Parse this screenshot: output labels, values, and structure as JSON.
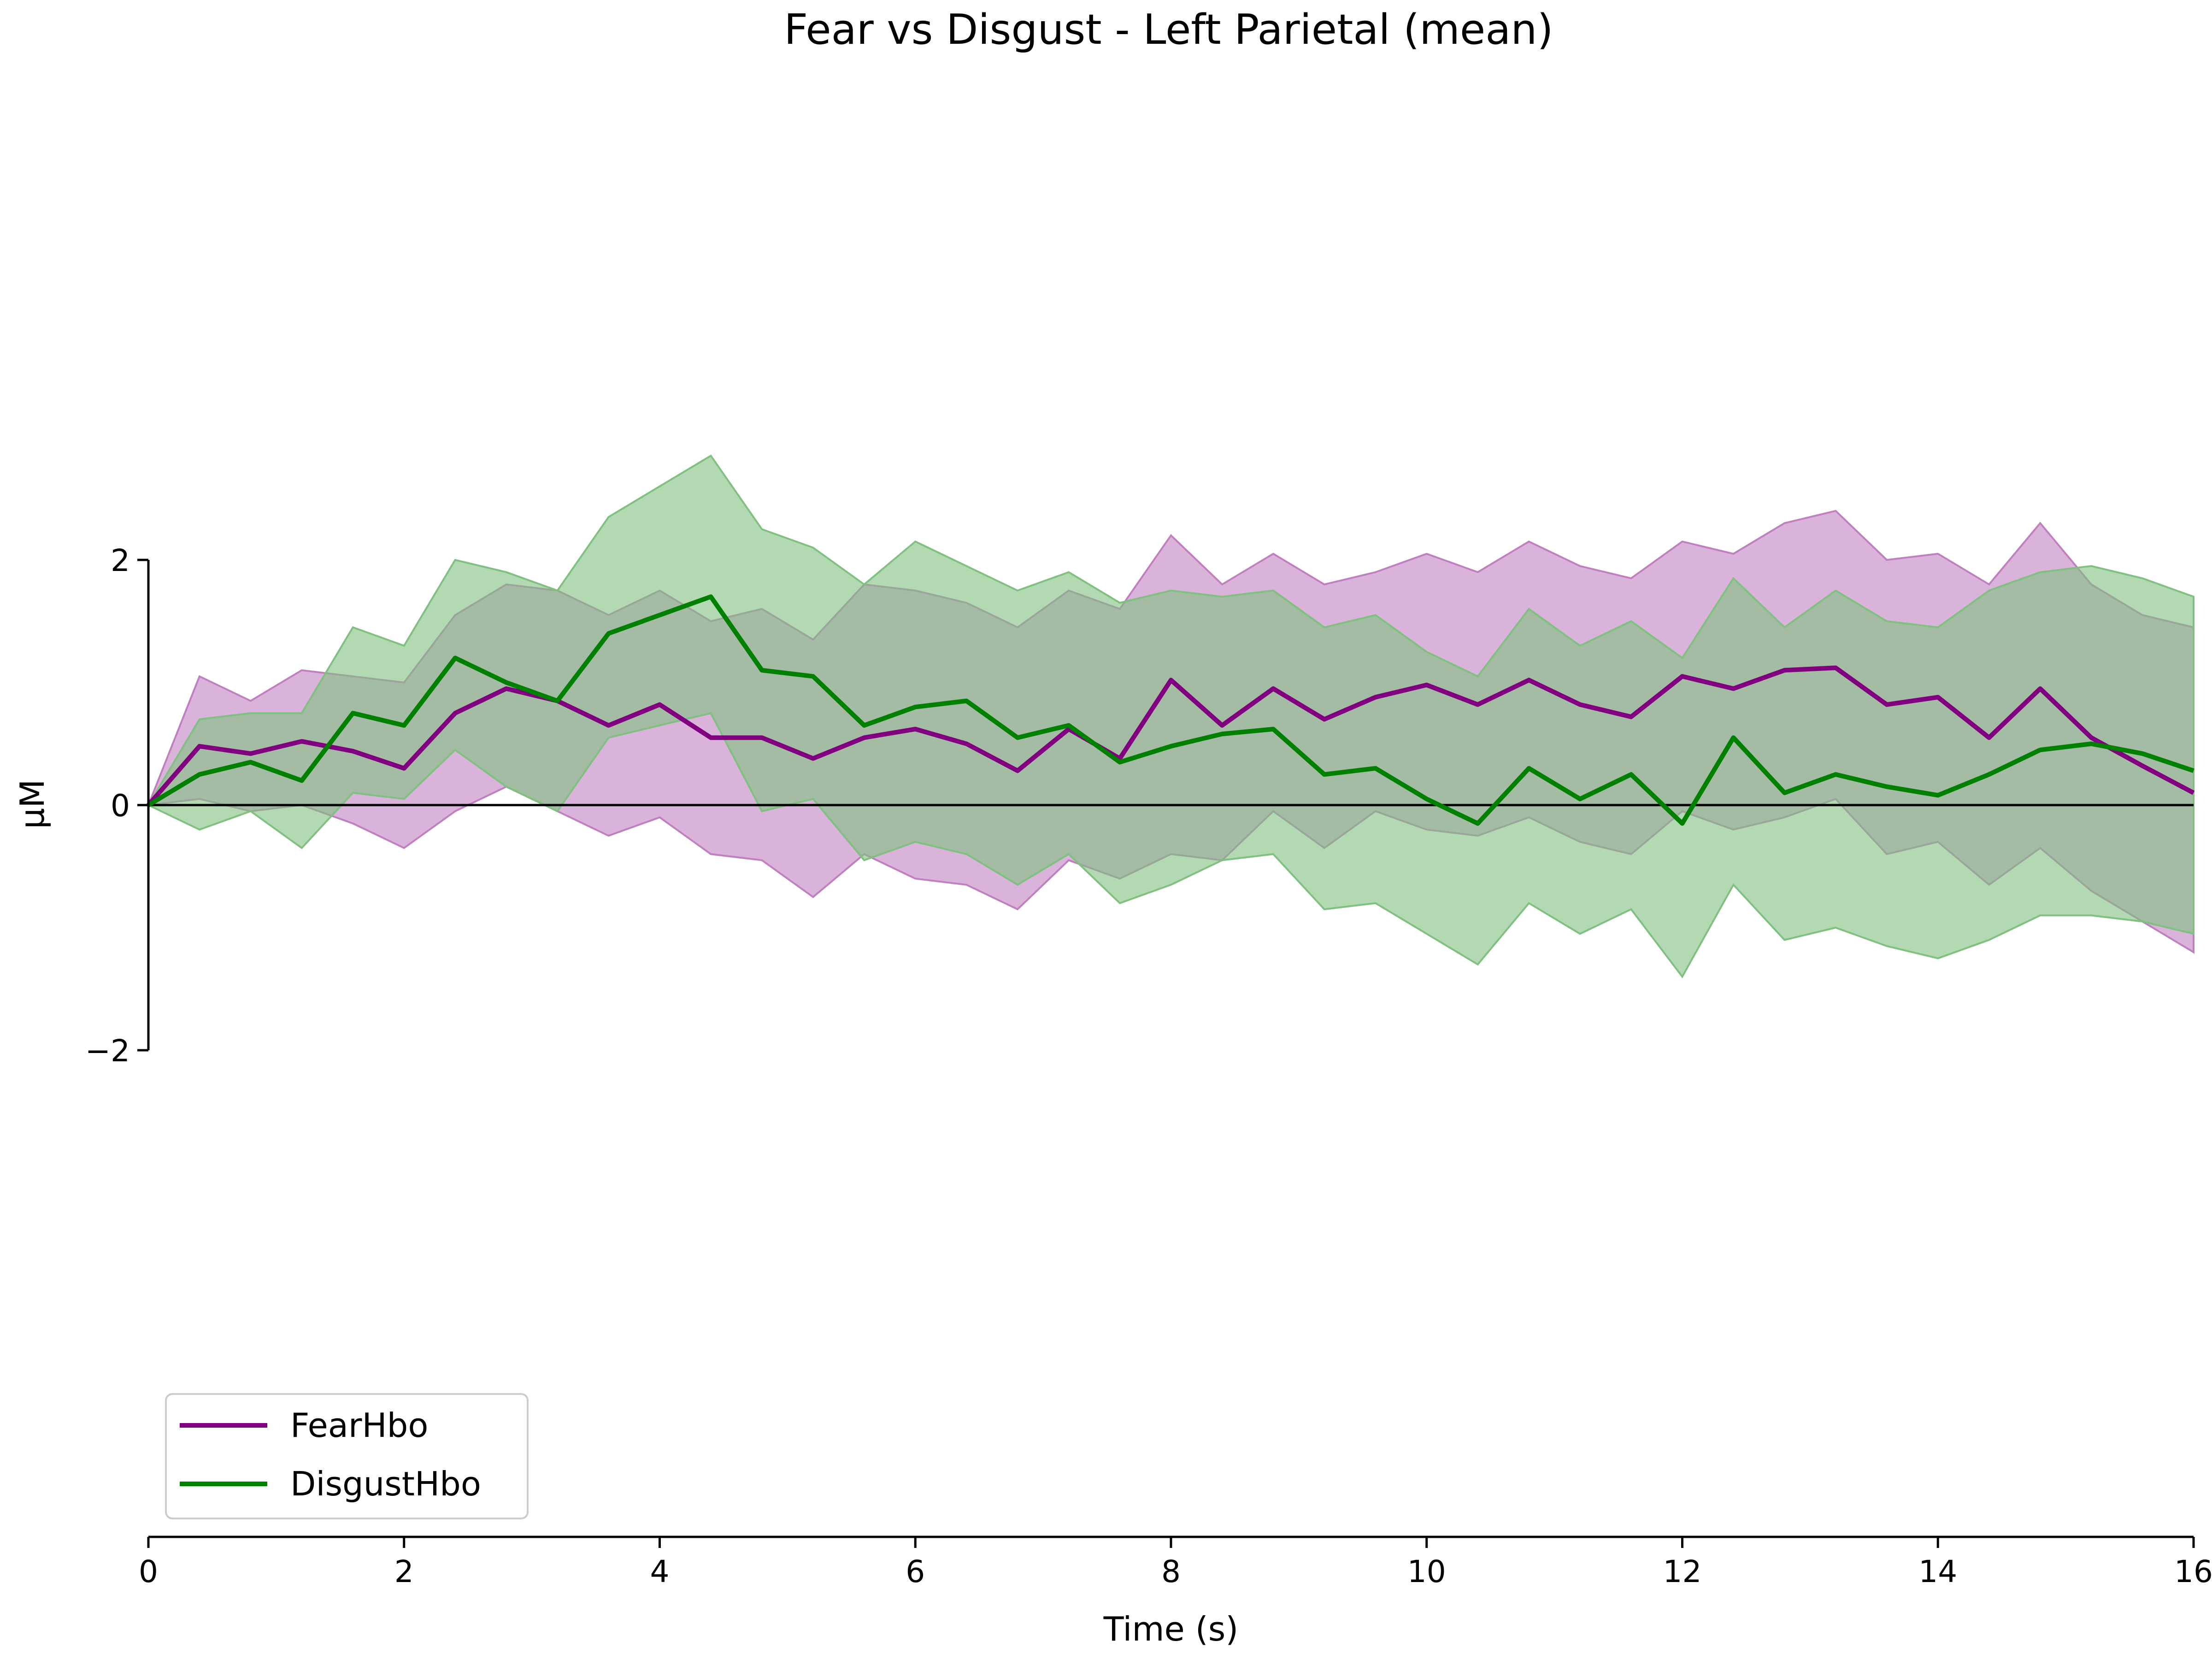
{
  "chart_data": {
    "type": "line",
    "title": "Fear vs Disgust - Left Parietal (mean)",
    "xlabel": "Time (s)",
    "ylabel": "μM",
    "xlim": [
      0,
      16
    ],
    "ylim": [
      -2,
      2
    ],
    "xticks": [
      0,
      2,
      4,
      6,
      8,
      10,
      12,
      14,
      16
    ],
    "yticks": [
      -2,
      0,
      2
    ],
    "ytick_labels": [
      "−2",
      "0",
      "2"
    ],
    "grid": false,
    "legend_position": "lower-left",
    "x": [
      0,
      0.4,
      0.8,
      1.2,
      1.6,
      2.0,
      2.4,
      2.8,
      3.2,
      3.6,
      4.0,
      4.4,
      4.8,
      5.2,
      5.6,
      6.0,
      6.4,
      6.8,
      7.2,
      7.6,
      8.0,
      8.4,
      8.8,
      9.2,
      9.6,
      10.0,
      10.4,
      10.8,
      11.2,
      11.6,
      12.0,
      12.4,
      12.8,
      13.2,
      13.6,
      14.0,
      14.4,
      14.8,
      15.2,
      15.6,
      16.0
    ],
    "series": [
      {
        "name": "FearHbo",
        "color": "#800080",
        "band_color": "#c080c0",
        "values": [
          0,
          0.48,
          0.42,
          0.52,
          0.44,
          0.3,
          0.75,
          0.95,
          0.85,
          0.65,
          0.82,
          0.55,
          0.55,
          0.38,
          0.55,
          0.62,
          0.5,
          0.28,
          0.62,
          0.38,
          1.02,
          0.65,
          0.95,
          0.7,
          0.88,
          0.98,
          0.82,
          1.02,
          0.82,
          0.72,
          1.05,
          0.95,
          1.1,
          1.12,
          0.82,
          0.88,
          0.55,
          0.95,
          0.55,
          0.32,
          0.1
        ],
        "lower": [
          0,
          0.05,
          -0.05,
          0,
          -0.15,
          -0.35,
          -0.05,
          0.15,
          -0.05,
          -0.25,
          -0.1,
          -0.4,
          -0.45,
          -0.75,
          -0.4,
          -0.6,
          -0.65,
          -0.85,
          -0.45,
          -0.6,
          -0.4,
          -0.45,
          -0.05,
          -0.35,
          -0.05,
          -0.2,
          -0.25,
          -0.1,
          -0.3,
          -0.4,
          -0.05,
          -0.2,
          -0.1,
          0.05,
          -0.4,
          -0.3,
          -0.65,
          -0.35,
          -0.7,
          -0.95,
          -1.2
        ],
        "upper": [
          0,
          1.05,
          0.85,
          1.1,
          1.05,
          1.0,
          1.55,
          1.8,
          1.75,
          1.55,
          1.75,
          1.5,
          1.6,
          1.35,
          1.8,
          1.75,
          1.65,
          1.45,
          1.75,
          1.6,
          2.2,
          1.8,
          2.05,
          1.8,
          1.9,
          2.05,
          1.9,
          2.15,
          1.95,
          1.85,
          2.15,
          2.05,
          2.3,
          2.4,
          2.0,
          2.05,
          1.8,
          2.3,
          1.8,
          1.55,
          1.45
        ]
      },
      {
        "name": "DisgustHbo",
        "color": "#008000",
        "band_color": "#80c080",
        "values": [
          0,
          0.25,
          0.35,
          0.2,
          0.75,
          0.65,
          1.2,
          1.0,
          0.85,
          1.4,
          1.55,
          1.7,
          1.1,
          1.05,
          0.65,
          0.8,
          0.85,
          0.55,
          0.65,
          0.35,
          0.48,
          0.58,
          0.62,
          0.25,
          0.3,
          0.05,
          -0.15,
          0.3,
          0.05,
          0.25,
          -0.15,
          0.55,
          0.1,
          0.25,
          0.15,
          0.08,
          0.25,
          0.45,
          0.5,
          0.42,
          0.28
        ],
        "lower": [
          0,
          -0.2,
          -0.05,
          -0.35,
          0.1,
          0.05,
          0.45,
          0.15,
          -0.05,
          0.55,
          0.65,
          0.75,
          -0.05,
          0.05,
          -0.45,
          -0.3,
          -0.4,
          -0.65,
          -0.4,
          -0.8,
          -0.65,
          -0.45,
          -0.4,
          -0.85,
          -0.8,
          -1.05,
          -1.3,
          -0.8,
          -1.05,
          -0.85,
          -1.4,
          -0.65,
          -1.1,
          -1.0,
          -1.15,
          -1.25,
          -1.1,
          -0.9,
          -0.9,
          -0.95,
          -1.05
        ],
        "upper": [
          0,
          0.7,
          0.75,
          0.75,
          1.45,
          1.3,
          2.0,
          1.9,
          1.75,
          2.35,
          2.6,
          2.85,
          2.25,
          2.1,
          1.8,
          2.15,
          1.95,
          1.75,
          1.9,
          1.65,
          1.75,
          1.7,
          1.75,
          1.45,
          1.55,
          1.25,
          1.05,
          1.6,
          1.3,
          1.5,
          1.2,
          1.85,
          1.45,
          1.75,
          1.5,
          1.45,
          1.75,
          1.9,
          1.95,
          1.85,
          1.7
        ]
      }
    ]
  }
}
